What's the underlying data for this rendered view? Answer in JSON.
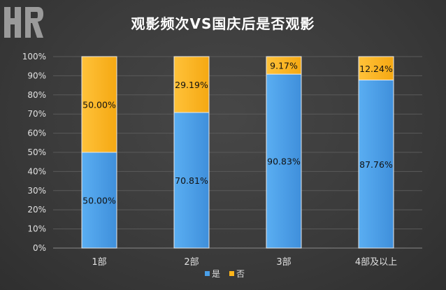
{
  "title": "观影频次VS国庆后是否观影",
  "colors": {
    "yes": "#4a9fe8",
    "no": "#ffb51a",
    "background": "#3b3b3b",
    "grid": "#5a5a5a"
  },
  "logo": {
    "icon": "hr-logo-icon",
    "text": "HR"
  },
  "chart_data": {
    "type": "bar",
    "stacked": true,
    "title": "观影频次VS国庆后是否观影",
    "categories": [
      "1部",
      "2部",
      "3部",
      "4部及以上"
    ],
    "series": [
      {
        "name": "是",
        "values": [
          50.0,
          70.81,
          90.83,
          87.76
        ],
        "labels": [
          "50.00%",
          "70.81%",
          "90.83%",
          "87.76%"
        ]
      },
      {
        "name": "否",
        "values": [
          50.0,
          29.19,
          9.17,
          12.24
        ],
        "labels": [
          "50.00%",
          "29.19%",
          "9.17%",
          "12.24%"
        ]
      }
    ],
    "ylim": [
      0,
      100
    ],
    "yticks": [
      "0%",
      "10%",
      "20%",
      "30%",
      "40%",
      "50%",
      "60%",
      "70%",
      "80%",
      "90%",
      "100%"
    ],
    "grid": true,
    "legend": "bottom"
  }
}
